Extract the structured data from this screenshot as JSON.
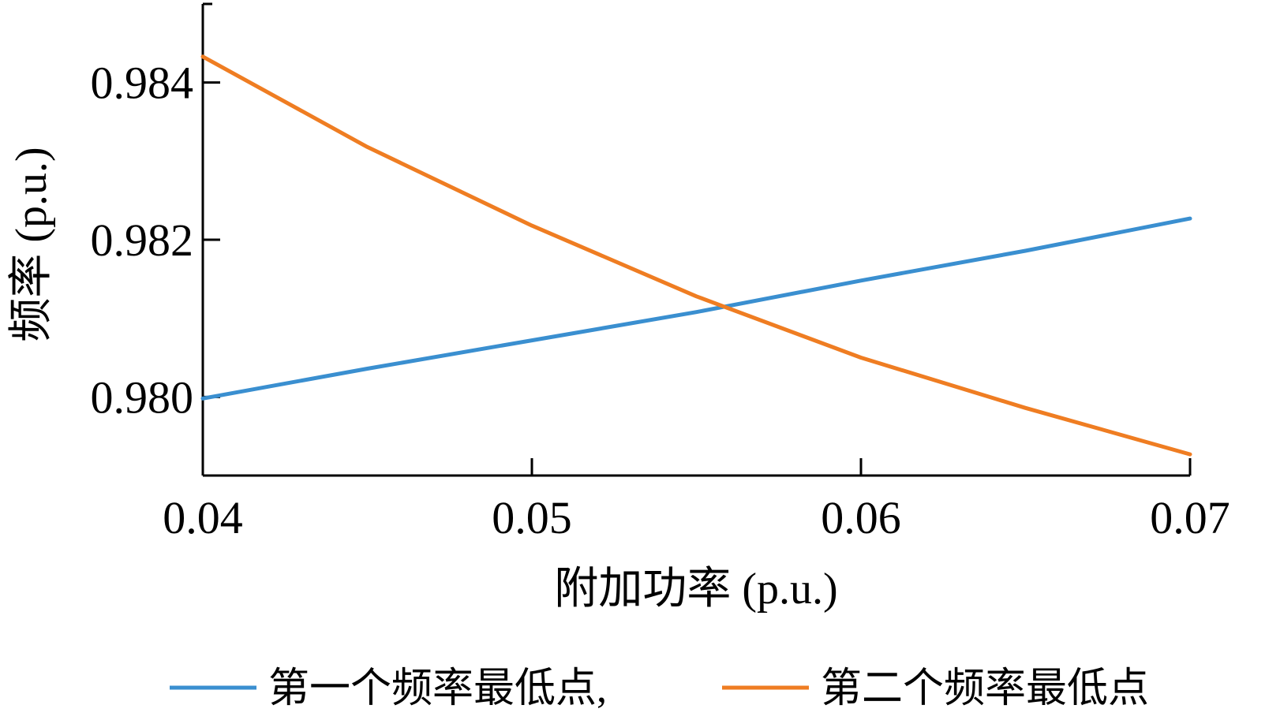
{
  "chart_data": {
    "type": "line",
    "xlabel": "附加功率 (p.u.)",
    "ylabel": "频率 (p.u.)",
    "xlim": [
      0.04,
      0.07
    ],
    "ylim": [
      0.979,
      0.985
    ],
    "x_ticks": [
      0.04,
      0.05,
      0.06,
      0.07
    ],
    "x_tick_labels": [
      "0.04",
      "0.05",
      "0.06",
      "0.07"
    ],
    "y_ticks": [
      0.98,
      0.982,
      0.984
    ],
    "y_tick_labels": [
      "0.980",
      "0.982",
      "0.984"
    ],
    "grid": false,
    "legend_position": "bottom",
    "series": [
      {
        "name": "第一个频率最低点,",
        "color": "#3a8fd0",
        "x": [
          0.04,
          0.045,
          0.05,
          0.055,
          0.06,
          0.065,
          0.07
        ],
        "values": [
          0.97998,
          0.98036,
          0.98072,
          0.98108,
          0.98148,
          0.98186,
          0.98227
        ]
      },
      {
        "name": "第二个频率最低点",
        "color": "#ef7d22",
        "x": [
          0.04,
          0.045,
          0.05,
          0.055,
          0.06,
          0.065,
          0.07
        ],
        "values": [
          0.98433,
          0.98318,
          0.98218,
          0.98128,
          0.9805,
          0.97986,
          0.97927
        ]
      }
    ]
  }
}
